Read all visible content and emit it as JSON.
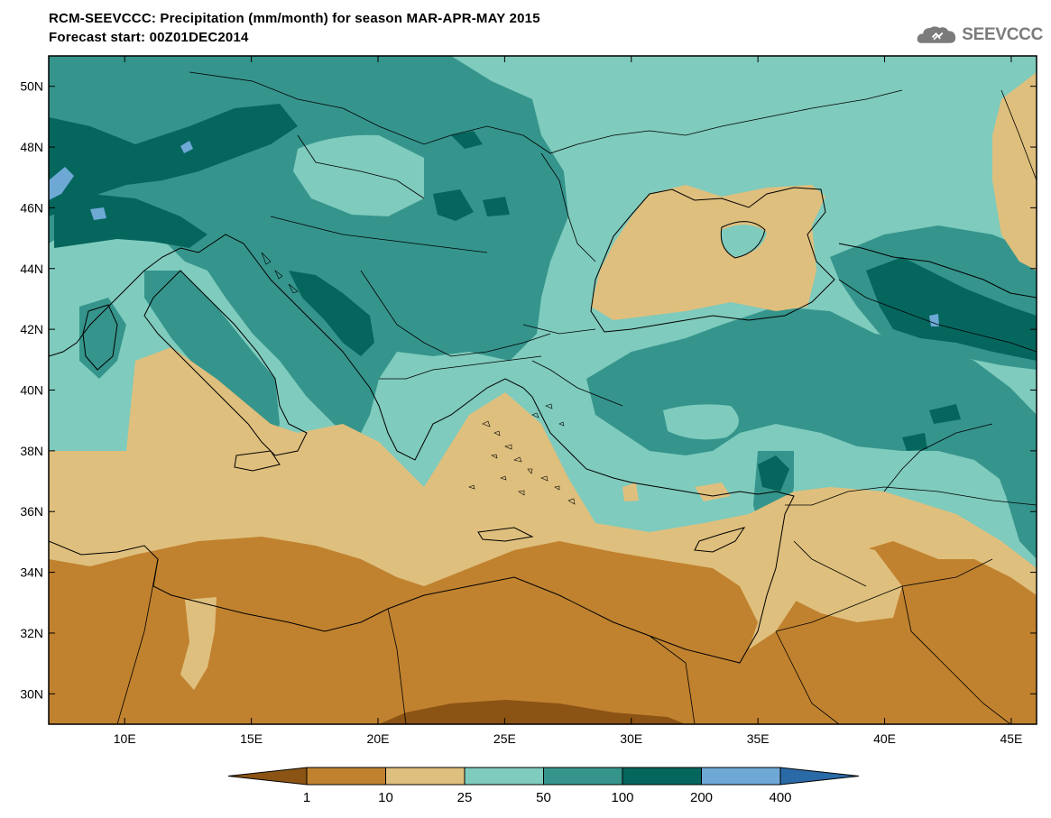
{
  "header": {
    "title_line1": "RCM-SEEVCCC: Precipitation (mm/month) for season MAR-APR-MAY 2015",
    "title_line2": "Forecast start: 00Z01DEC2014"
  },
  "logo": {
    "text": "SEEVCCC",
    "icon": "cloud-icon"
  },
  "map": {
    "lon_range": [
      7,
      46
    ],
    "lat_range": [
      29,
      51
    ],
    "lon_ticks": [
      "10E",
      "15E",
      "20E",
      "25E",
      "30E",
      "35E",
      "40E",
      "45E"
    ],
    "lat_ticks": [
      "30N",
      "32N",
      "34N",
      "36N",
      "38N",
      "40N",
      "42N",
      "44N",
      "46N",
      "48N",
      "50N"
    ]
  },
  "colorbar": {
    "boundaries": [
      "1",
      "10",
      "25",
      "50",
      "100",
      "200",
      "400"
    ],
    "colors": [
      "#8b5314",
      "#c0822f",
      "#dfbf7d",
      "#7fcbbd",
      "#35958c",
      "#05665d",
      "#6ea9d6",
      "#2a6aa6"
    ]
  },
  "palette": {
    "lt1": "#8b5314",
    "1-10": "#c0822f",
    "10-25": "#dfbf7d",
    "25-50": "#7fcbbd",
    "50-100": "#35958c",
    "100-200": "#05665d",
    "200-400": "#6ea9d6",
    "gt400": "#2a6aa6"
  }
}
